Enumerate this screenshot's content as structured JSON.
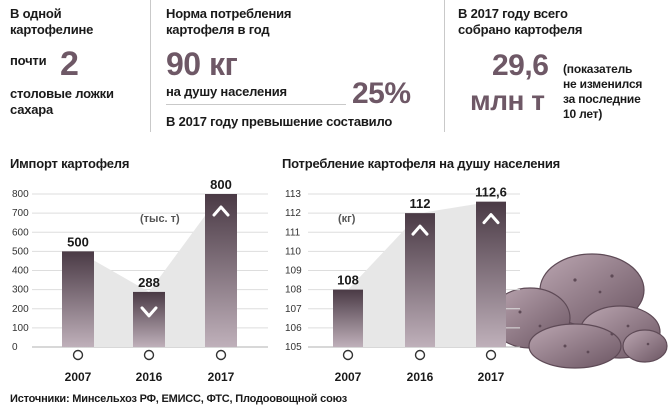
{
  "facts": {
    "spoon": {
      "line1": "В одной",
      "line2": "картофелине",
      "pre": "почти",
      "number": "2",
      "line3": "столовые ложки",
      "line4": "сахара"
    },
    "norm": {
      "line1": "Норма потребления",
      "line2": "картофеля в год",
      "value": "90 кг",
      "per_capita": "на душу населения",
      "percent": "25%",
      "excess": "В 2017 году превышение составило"
    },
    "harvest": {
      "line1": "В 2017 году всего",
      "line2": "собрано картофеля",
      "value1": "29,6",
      "value2": "млн т",
      "note1": "(показатель",
      "note2": "не изменился",
      "note3": "за последние",
      "note4": "10 лет)"
    }
  },
  "colors": {
    "bar_top": "#4a3a45",
    "bar_bottom": "#bfb0ba",
    "accent": "#6e5866",
    "potato": "#a58d99",
    "potato_dark": "#6b5562"
  },
  "source": "Источники: Минсельхоз РФ, ЕМИСС, ФТС, Плодоовощной союз",
  "chart_data": [
    {
      "type": "bar",
      "title": "Импорт картофеля",
      "unit_label": "(тыс. т)",
      "categories": [
        "2007",
        "2016",
        "2017"
      ],
      "values": [
        500,
        288,
        800
      ],
      "value_labels": [
        "500",
        "288",
        "800"
      ],
      "ylim": [
        0,
        800
      ],
      "yticks": [
        0,
        100,
        200,
        300,
        400,
        500,
        600,
        700,
        800
      ],
      "trend_arrows": [
        "",
        "down",
        "up"
      ],
      "grid": true
    },
    {
      "type": "bar",
      "title": "Потребление картофеля на душу населения",
      "unit_label": "(кг)",
      "categories": [
        "2007",
        "2016",
        "2017"
      ],
      "values": [
        108,
        112,
        112.6
      ],
      "value_labels": [
        "108",
        "112",
        "112,6"
      ],
      "ylim": [
        105,
        113
      ],
      "yticks": [
        105,
        106,
        107,
        108,
        109,
        110,
        111,
        112,
        113
      ],
      "trend_arrows": [
        "",
        "up",
        "up"
      ],
      "grid": true
    }
  ]
}
